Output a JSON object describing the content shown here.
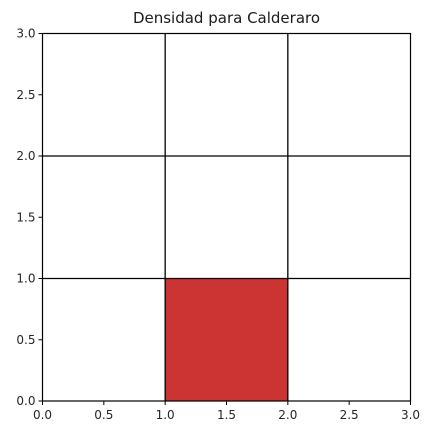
{
  "chart_data": {
    "type": "heatmap",
    "title": "Densidad para Calderaro",
    "xlabel": "",
    "ylabel": "",
    "xlim": [
      0,
      3
    ],
    "ylim": [
      0,
      3
    ],
    "x_ticks": [
      "0.0",
      "0.5",
      "1.0",
      "1.5",
      "2.0",
      "2.5",
      "3.0"
    ],
    "y_ticks": [
      "0.0",
      "0.5",
      "1.0",
      "1.5",
      "2.0",
      "2.5",
      "3.0"
    ],
    "grid": true,
    "grid_lines": [
      1,
      2
    ],
    "cells": [
      {
        "x": [
          1,
          2
        ],
        "y": [
          0,
          1
        ],
        "color": "#cc3333"
      }
    ],
    "colors": {
      "grid": "#000000",
      "filled_cell": "#cc3333",
      "background": "#ffffff"
    }
  }
}
